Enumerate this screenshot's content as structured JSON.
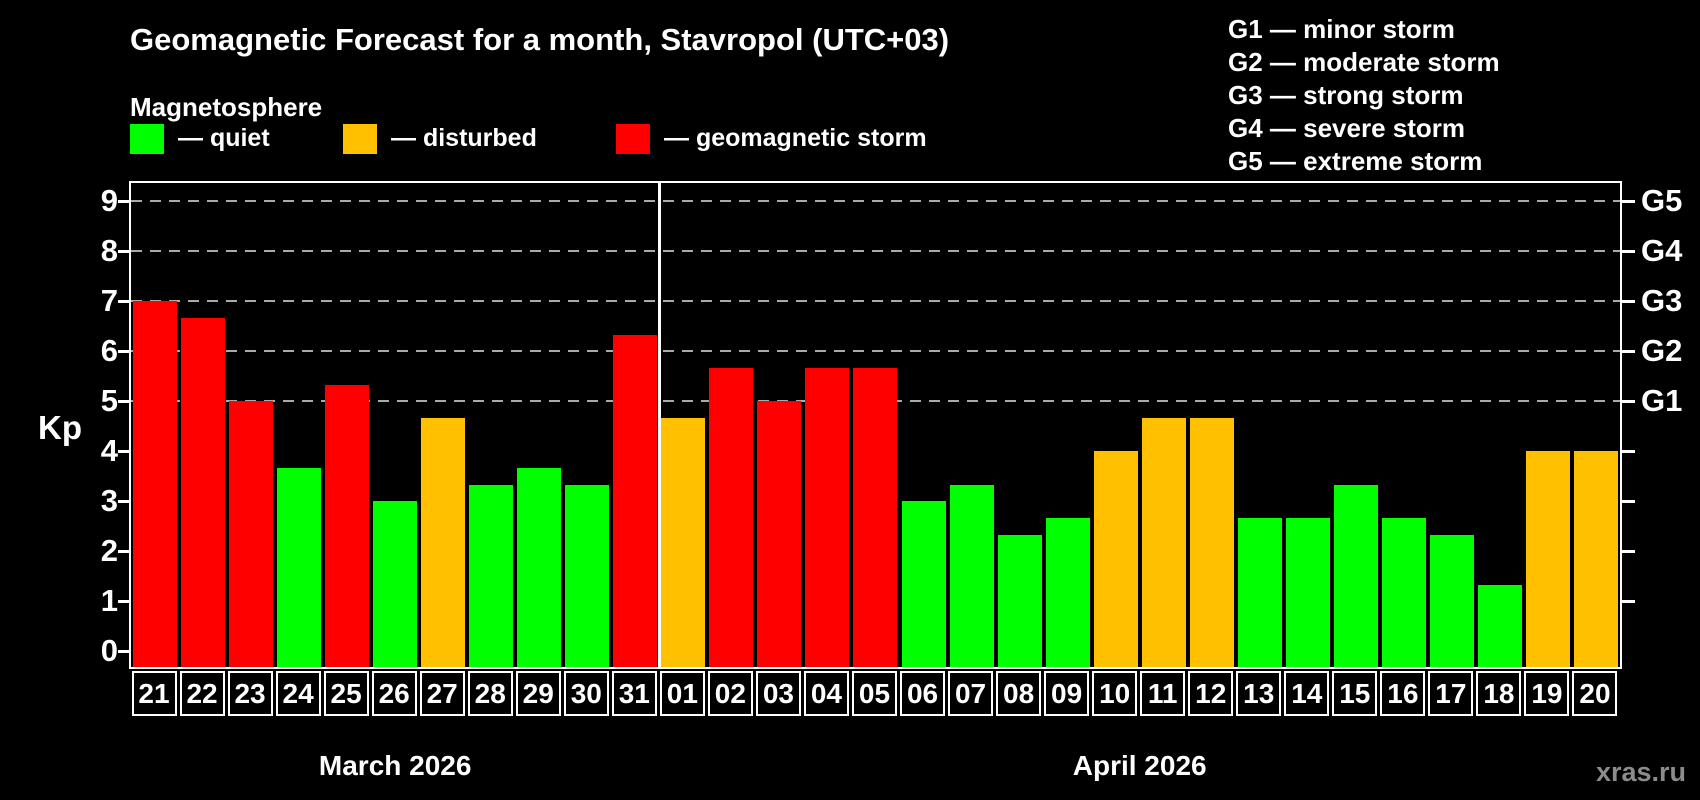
{
  "title": "Geomagnetic Forecast for a month, Stavropol (UTC+03)",
  "subtitle": "Magnetosphere",
  "legend": {
    "quiet": "— quiet",
    "disturbed": "— disturbed",
    "storm": "— geomagnetic storm"
  },
  "g_legend": [
    "G1 — minor storm",
    "G2 — moderate storm",
    "G3 — strong storm",
    "G4 — severe storm",
    "G5 — extreme storm"
  ],
  "watermark": "xras.ru",
  "colors": {
    "quiet": "#00ff00",
    "disturbed": "#ffc000",
    "storm": "#ff0000",
    "grid": "#aaaaaa",
    "axis": "#ffffff",
    "watermark": "#8c8c8c",
    "background": "#000000"
  },
  "chart_data": {
    "type": "bar",
    "title": "Geomagnetic Forecast for a month, Stavropol (UTC+03)",
    "ylabel": "Kp",
    "ylim": [
      0,
      9.35
    ],
    "y_ticks": [
      0,
      1,
      2,
      3,
      4,
      5,
      6,
      7,
      8,
      9
    ],
    "gridlines_kp": [
      5,
      6,
      7,
      8,
      9
    ],
    "right_axis": [
      {
        "label": "G5",
        "kp": 9
      },
      {
        "label": "G4",
        "kp": 8
      },
      {
        "label": "G3",
        "kp": 7
      },
      {
        "label": "G2",
        "kp": 6
      },
      {
        "label": "G1",
        "kp": 5
      }
    ],
    "months": [
      {
        "label": "March 2026",
        "days": [
          "21",
          "22",
          "23",
          "24",
          "25",
          "26",
          "27",
          "28",
          "29",
          "30",
          "31"
        ]
      },
      {
        "label": "April 2026",
        "days": [
          "01",
          "02",
          "03",
          "04",
          "05",
          "06",
          "07",
          "08",
          "09",
          "10",
          "11",
          "12",
          "13",
          "14",
          "15",
          "16",
          "17",
          "18",
          "19",
          "20"
        ]
      }
    ],
    "bars": [
      {
        "day": "21",
        "month": "March 2026",
        "kp": 7.0,
        "status": "storm"
      },
      {
        "day": "22",
        "month": "March 2026",
        "kp": 6.67,
        "status": "storm"
      },
      {
        "day": "23",
        "month": "March 2026",
        "kp": 5.0,
        "status": "storm"
      },
      {
        "day": "24",
        "month": "March 2026",
        "kp": 3.67,
        "status": "quiet"
      },
      {
        "day": "25",
        "month": "March 2026",
        "kp": 5.33,
        "status": "storm"
      },
      {
        "day": "26",
        "month": "March 2026",
        "kp": 3.0,
        "status": "quiet"
      },
      {
        "day": "27",
        "month": "March 2026",
        "kp": 4.67,
        "status": "disturbed"
      },
      {
        "day": "28",
        "month": "March 2026",
        "kp": 3.33,
        "status": "quiet"
      },
      {
        "day": "29",
        "month": "March 2026",
        "kp": 3.67,
        "status": "quiet"
      },
      {
        "day": "30",
        "month": "March 2026",
        "kp": 3.33,
        "status": "quiet"
      },
      {
        "day": "31",
        "month": "March 2026",
        "kp": 6.33,
        "status": "storm"
      },
      {
        "day": "01",
        "month": "April 2026",
        "kp": 4.67,
        "status": "disturbed"
      },
      {
        "day": "02",
        "month": "April 2026",
        "kp": 5.67,
        "status": "storm"
      },
      {
        "day": "03",
        "month": "April 2026",
        "kp": 5.0,
        "status": "storm"
      },
      {
        "day": "04",
        "month": "April 2026",
        "kp": 5.67,
        "status": "storm"
      },
      {
        "day": "05",
        "month": "April 2026",
        "kp": 5.67,
        "status": "storm"
      },
      {
        "day": "06",
        "month": "April 2026",
        "kp": 3.0,
        "status": "quiet"
      },
      {
        "day": "07",
        "month": "April 2026",
        "kp": 3.33,
        "status": "quiet"
      },
      {
        "day": "08",
        "month": "April 2026",
        "kp": 2.33,
        "status": "quiet"
      },
      {
        "day": "09",
        "month": "April 2026",
        "kp": 2.67,
        "status": "quiet"
      },
      {
        "day": "10",
        "month": "April 2026",
        "kp": 4.0,
        "status": "disturbed"
      },
      {
        "day": "11",
        "month": "April 2026",
        "kp": 4.67,
        "status": "disturbed"
      },
      {
        "day": "12",
        "month": "April 2026",
        "kp": 4.67,
        "status": "disturbed"
      },
      {
        "day": "13",
        "month": "April 2026",
        "kp": 2.67,
        "status": "quiet"
      },
      {
        "day": "14",
        "month": "April 2026",
        "kp": 2.67,
        "status": "quiet"
      },
      {
        "day": "15",
        "month": "April 2026",
        "kp": 3.33,
        "status": "quiet"
      },
      {
        "day": "16",
        "month": "April 2026",
        "kp": 2.67,
        "status": "quiet"
      },
      {
        "day": "17",
        "month": "April 2026",
        "kp": 2.33,
        "status": "quiet"
      },
      {
        "day": "18",
        "month": "April 2026",
        "kp": 1.33,
        "status": "quiet"
      },
      {
        "day": "19",
        "month": "April 2026",
        "kp": 4.0,
        "status": "disturbed"
      },
      {
        "day": "20",
        "month": "April 2026",
        "kp": 4.0,
        "status": "disturbed"
      }
    ]
  }
}
